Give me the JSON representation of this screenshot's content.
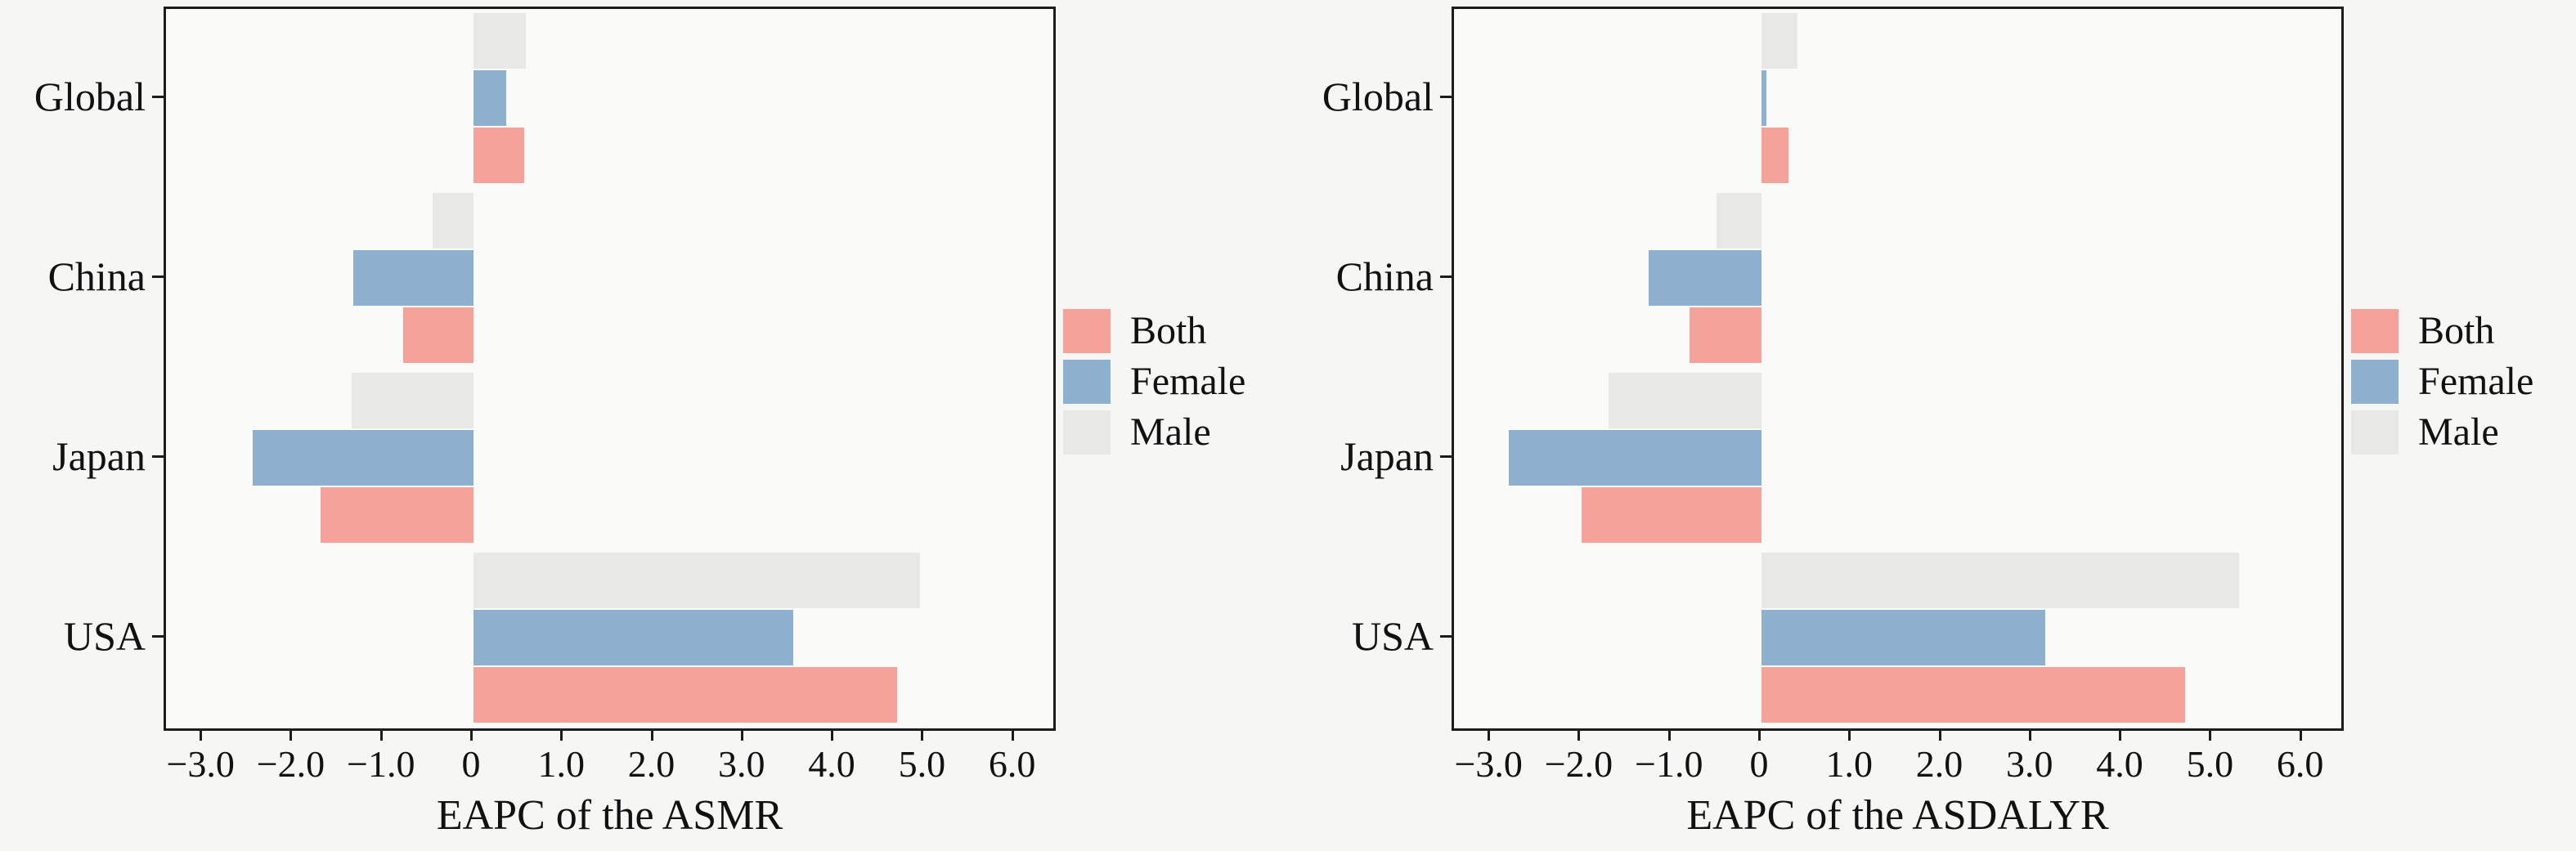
{
  "figure": {
    "background": "#f6f6f4",
    "plot_background": "#fafaf9",
    "axis_color": "#1c1c1c",
    "text_color": "#111111"
  },
  "chart_data": [
    {
      "type": "bar",
      "orientation": "horizontal",
      "xlabel": "EAPC of the ASMR",
      "categories": [
        "Global",
        "China",
        "Japan",
        "USA"
      ],
      "series": [
        {
          "name": "Both",
          "color": "#f5a29b",
          "values": [
            0.56,
            -0.78,
            -1.7,
            4.7
          ]
        },
        {
          "name": "Female",
          "color": "#8eb0cf",
          "values": [
            0.36,
            -1.33,
            -2.45,
            3.55
          ]
        },
        {
          "name": "Male",
          "color": "#e8e8e7",
          "values": [
            0.58,
            -0.45,
            -1.35,
            4.95
          ]
        }
      ],
      "xlim": [
        -3.41,
        6.43
      ],
      "xticks": [
        -3,
        -2,
        -1,
        0,
        1,
        2,
        3,
        4,
        5,
        6
      ],
      "xtick_labels": [
        "−3.0",
        "−2.0",
        "−1.0",
        "0",
        "1.0",
        "2.0",
        "3.0",
        "4.0",
        "5.0",
        "6.0"
      ],
      "grid": false,
      "legend_position": "outside-right"
    },
    {
      "type": "bar",
      "orientation": "horizontal",
      "xlabel": "EAPC of the ASDALYR",
      "categories": [
        "Global",
        "China",
        "Japan",
        "USA"
      ],
      "series": [
        {
          "name": "Both",
          "color": "#f5a29b",
          "values": [
            0.3,
            -0.8,
            -2.0,
            4.7
          ]
        },
        {
          "name": "Female",
          "color": "#8eb0cf",
          "values": [
            0.05,
            -1.25,
            -2.8,
            3.15
          ]
        },
        {
          "name": "Male",
          "color": "#e8e8e7",
          "values": [
            0.4,
            -0.5,
            -1.7,
            5.3
          ]
        }
      ],
      "xlim": [
        -3.41,
        6.43
      ],
      "xticks": [
        -3,
        -2,
        -1,
        0,
        1,
        2,
        3,
        4,
        5,
        6
      ],
      "xtick_labels": [
        "−3.0",
        "−2.0",
        "−1.0",
        "0",
        "1.0",
        "2.0",
        "3.0",
        "4.0",
        "5.0",
        "6.0"
      ],
      "grid": false,
      "legend_position": "outside-right"
    }
  ]
}
